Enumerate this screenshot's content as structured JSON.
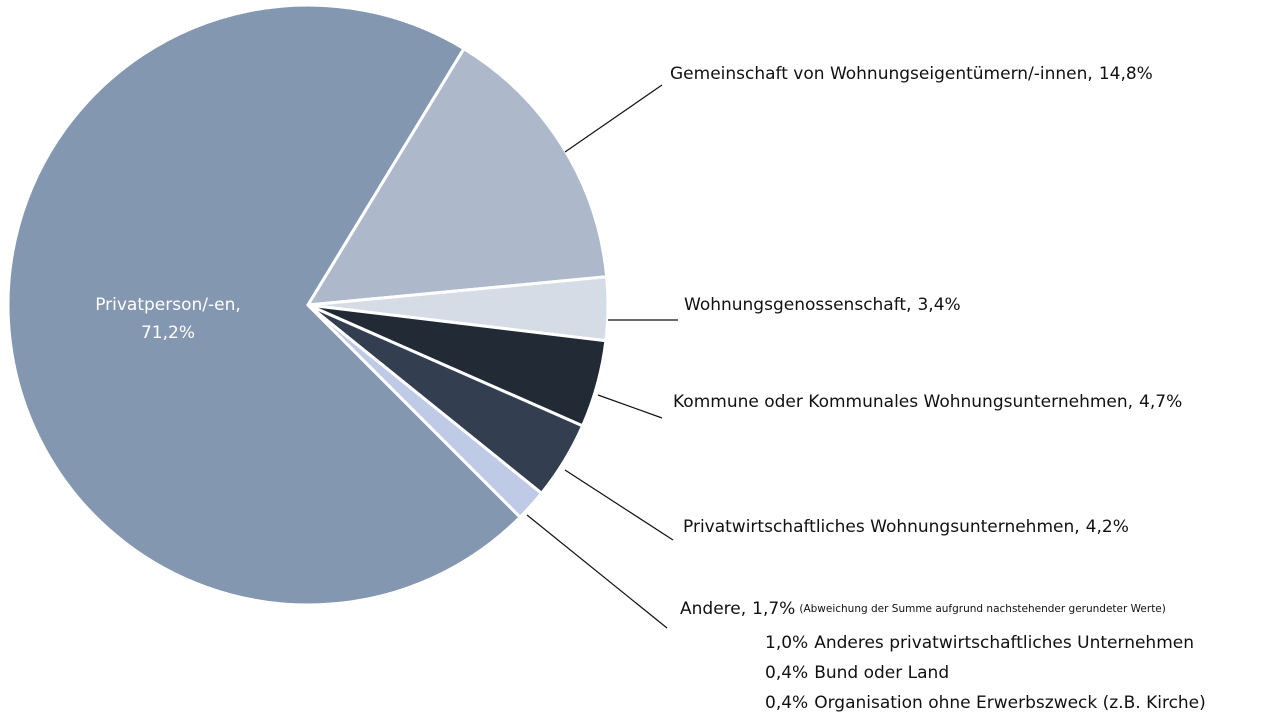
{
  "chart_data": {
    "type": "pie",
    "categories": [
      "Privatperson/-en,",
      "Gemeinschaft von Wohnungseigentümern/-innen,",
      "Wohnungsgenossenschaft,",
      "Kommune oder Kommunales Wohnungsunternehmen,",
      "Privatwirtschaftliches Wohnungsunternehmen,",
      "Andere,"
    ],
    "values": [
      71.2,
      14.8,
      3.4,
      4.7,
      4.2,
      1.7
    ],
    "value_labels": [
      "71,2%",
      "14,8%",
      "3,4%",
      "4,7%",
      "4,2%",
      "1,7%"
    ],
    "colors": [
      "#8497b0",
      "#adb9ca",
      "#d6dce5",
      "#222a35",
      "#333f50",
      "#bfcae6"
    ],
    "note": "(Abweichung der Summe aufgrund nachstehender gerundeter Werte)",
    "breakdown": [
      {
        "share": "1,0%",
        "name": "Anderes privatwirtschaftliches Unternehmen"
      },
      {
        "share": "0,4%",
        "name": "Bund oder Land"
      },
      {
        "share": "0,4%",
        "name": "Organisation ohne Erwerbszweck (z.B. Kirche)"
      }
    ]
  }
}
